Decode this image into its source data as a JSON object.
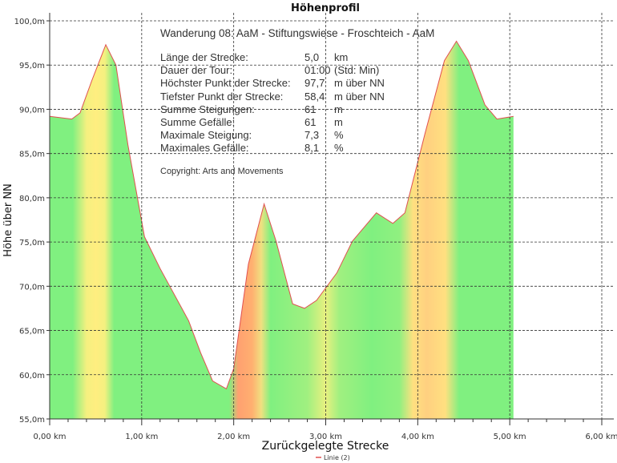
{
  "chart_data": {
    "type": "area",
    "title": "Höhenprofil",
    "xlabel": "Zurückgelegte Strecke",
    "ylabel": "Höhe über NN",
    "xlim": [
      0,
      6
    ],
    "ylim": [
      55,
      100
    ],
    "x_ticks": [
      "0,00 km",
      "1,00 km",
      "2,00 km",
      "3,00 km",
      "4,00 km",
      "5,00 km",
      "6,00 km"
    ],
    "y_ticks": [
      "55,0m",
      "60,0m",
      "65,0m",
      "70,0m",
      "75,0m",
      "80,0m",
      "85,0m",
      "90,0m",
      "95,0m",
      "100,0m"
    ],
    "grid": true,
    "legend": {
      "position": "bottom",
      "entries": [
        {
          "label": "Linie (2)",
          "color": "#e05050"
        }
      ]
    },
    "series": [
      {
        "name": "Linie (2)",
        "x": [
          0,
          0.24,
          0.33,
          0.46,
          0.61,
          0.72,
          0.85,
          1.03,
          1.2,
          1.51,
          1.64,
          1.77,
          1.92,
          2.0,
          2.16,
          2.33,
          2.46,
          2.64,
          2.77,
          2.9,
          3.12,
          3.29,
          3.55,
          3.73,
          3.86,
          4.08,
          4.29,
          4.42,
          4.55,
          4.73,
          4.86,
          5.04
        ],
        "y": [
          89.2,
          88.9,
          89.6,
          93.3,
          97.3,
          95,
          86,
          75.6,
          72,
          66.1,
          62.5,
          59.3,
          58.4,
          60.7,
          72.5,
          79.3,
          75.1,
          68,
          67.5,
          68.4,
          71.5,
          75.1,
          78.3,
          77.1,
          78.3,
          87.3,
          95.5,
          97.7,
          95.5,
          90.5,
          88.9,
          89.2
        ]
      }
    ],
    "slope_colors": [
      {
        "x": 0,
        "color": "#80f080"
      },
      {
        "x": 0.25,
        "color": "#80f080"
      },
      {
        "x": 0.4,
        "color": "#f4f080"
      },
      {
        "x": 0.5,
        "color": "#ffee80"
      },
      {
        "x": 0.6,
        "color": "#f4f080"
      },
      {
        "x": 0.7,
        "color": "#80f080"
      },
      {
        "x": 1.95,
        "color": "#80f080"
      },
      {
        "x": 2.05,
        "color": "#ffa070"
      },
      {
        "x": 2.2,
        "color": "#ffb070"
      },
      {
        "x": 2.3,
        "color": "#f0e080"
      },
      {
        "x": 2.4,
        "color": "#80f080"
      },
      {
        "x": 2.8,
        "color": "#a0f080"
      },
      {
        "x": 3.0,
        "color": "#e8f080"
      },
      {
        "x": 3.15,
        "color": "#a0f080"
      },
      {
        "x": 3.5,
        "color": "#80f080"
      },
      {
        "x": 3.8,
        "color": "#90f080"
      },
      {
        "x": 3.95,
        "color": "#ffe080"
      },
      {
        "x": 4.1,
        "color": "#ffd080"
      },
      {
        "x": 4.3,
        "color": "#ffe080"
      },
      {
        "x": 4.45,
        "color": "#80f080"
      },
      {
        "x": 5.04,
        "color": "#80f080"
      }
    ]
  },
  "info": {
    "heading": "Wanderung 08: AaM - Stiftungswiese - Froschteich - AaM",
    "rows": [
      {
        "label": "Länge der Strecke:",
        "value": "5,0",
        "unit": "km"
      },
      {
        "label": "Dauer der Tour:",
        "value": "01:00",
        "unit": "(Std: Min)"
      },
      {
        "label": "Höchster Punkt der Strecke:",
        "value": "97,7",
        "unit": "m über NN"
      },
      {
        "label": "Tiefster Punkt der Strecke:",
        "value": "58,4",
        "unit": "m über NN"
      },
      {
        "label": "Summe Steigungen:",
        "value": "61",
        "unit": "m"
      },
      {
        "label": "Summe Gefälle:",
        "value": "61",
        "unit": "m"
      },
      {
        "label": "Maximale Steigung:",
        "value": "7,3",
        "unit": "%"
      },
      {
        "label": "Maximales Gefälle:",
        "value": "8,1",
        "unit": "%"
      }
    ],
    "copyright": "Copyright: Arts and Movements"
  }
}
